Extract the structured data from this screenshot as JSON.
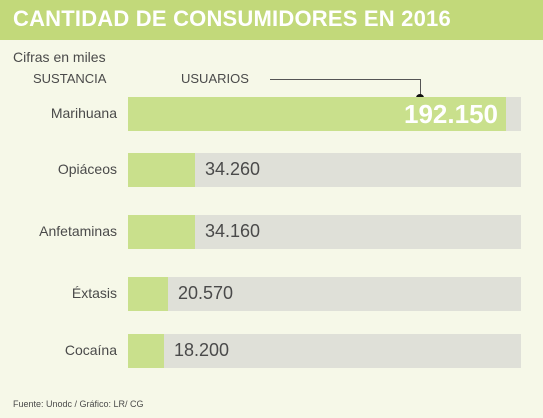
{
  "chart_data": {
    "type": "bar",
    "orientation": "horizontal",
    "title": "CANTIDAD DE CONSUMIDORES EN 2016",
    "subtitle": "Cifras en miles",
    "category_header": "SUSTANCIA",
    "value_header": "USUARIOS",
    "categories": [
      "Marihuana",
      "Opiáceos",
      "Anfetaminas",
      "Éxtasis",
      "Cocaína"
    ],
    "values": [
      192150,
      34260,
      34160,
      20570,
      18200
    ],
    "value_labels": [
      "192.150",
      "34.260",
      "34.160",
      "20.570",
      "18.200"
    ],
    "xlim": [
      0,
      200000
    ],
    "source": "Fuente: Unodc / Gráfico: LR/ CG",
    "colors": {
      "bar": "#c9e08c",
      "track": "#dfe0d8",
      "title_bg": "#c2d97a"
    }
  }
}
